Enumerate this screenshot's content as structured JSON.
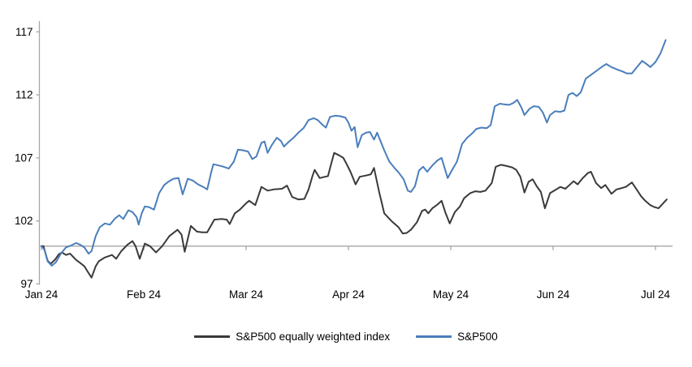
{
  "chart_data": {
    "type": "line",
    "title": "",
    "xlabel": "",
    "ylabel": "",
    "x_axis": {
      "tick_labels": [
        "Jan 24",
        "Feb 24",
        "Mar 24",
        "Apr 24",
        "May 24",
        "Jun 24",
        "Jul 24"
      ],
      "unit": "months since Jan 1 2024",
      "range": [
        0,
        6.17
      ]
    },
    "y_axis": {
      "ticks": [
        97,
        102,
        107,
        112,
        117
      ],
      "range": [
        96.5,
        117.8
      ],
      "baseline_value": 100
    },
    "grid": "none",
    "legend_position": "bottom-center",
    "series": [
      {
        "name": "S&P500 equally weighted index",
        "color": "#3a3a3a",
        "points": [
          [
            0.0,
            100.0
          ],
          [
            0.02,
            100.0
          ],
          [
            0.06,
            98.85
          ],
          [
            0.09,
            98.6
          ],
          [
            0.13,
            98.9
          ],
          [
            0.17,
            99.35
          ],
          [
            0.2,
            99.5
          ],
          [
            0.24,
            99.3
          ],
          [
            0.28,
            99.4
          ],
          [
            0.34,
            98.9
          ],
          [
            0.39,
            98.6
          ],
          [
            0.42,
            98.4
          ],
          [
            0.45,
            98.0
          ],
          [
            0.49,
            97.5
          ],
          [
            0.53,
            98.4
          ],
          [
            0.56,
            98.8
          ],
          [
            0.62,
            99.1
          ],
          [
            0.69,
            99.3
          ],
          [
            0.73,
            99.0
          ],
          [
            0.78,
            99.6
          ],
          [
            0.84,
            100.1
          ],
          [
            0.89,
            100.4
          ],
          [
            0.92,
            100.0
          ],
          [
            0.96,
            99.0
          ],
          [
            1.01,
            100.2
          ],
          [
            1.06,
            100.0
          ],
          [
            1.12,
            99.5
          ],
          [
            1.18,
            100.0
          ],
          [
            1.25,
            100.8
          ],
          [
            1.33,
            101.3
          ],
          [
            1.37,
            100.9
          ],
          [
            1.4,
            99.55
          ],
          [
            1.46,
            101.6
          ],
          [
            1.52,
            101.15
          ],
          [
            1.57,
            101.1
          ],
          [
            1.62,
            101.1
          ],
          [
            1.69,
            102.1
          ],
          [
            1.76,
            102.15
          ],
          [
            1.81,
            102.1
          ],
          [
            1.84,
            101.75
          ],
          [
            1.89,
            102.6
          ],
          [
            1.94,
            102.9
          ],
          [
            2.0,
            103.4
          ],
          [
            2.03,
            103.6
          ],
          [
            2.09,
            103.25
          ],
          [
            2.15,
            104.7
          ],
          [
            2.21,
            104.4
          ],
          [
            2.27,
            104.5
          ],
          [
            2.35,
            104.55
          ],
          [
            2.4,
            104.8
          ],
          [
            2.45,
            103.9
          ],
          [
            2.51,
            103.7
          ],
          [
            2.57,
            103.75
          ],
          [
            2.61,
            104.5
          ],
          [
            2.65,
            105.6
          ],
          [
            2.67,
            106.05
          ],
          [
            2.72,
            105.4
          ],
          [
            2.77,
            105.5
          ],
          [
            2.8,
            105.55
          ],
          [
            2.83,
            106.5
          ],
          [
            2.86,
            107.4
          ],
          [
            2.91,
            107.2
          ],
          [
            2.95,
            107.0
          ],
          [
            2.98,
            106.55
          ],
          [
            3.02,
            105.9
          ],
          [
            3.05,
            105.3
          ],
          [
            3.07,
            104.9
          ],
          [
            3.11,
            105.5
          ],
          [
            3.17,
            105.6
          ],
          [
            3.22,
            105.7
          ],
          [
            3.25,
            106.2
          ],
          [
            3.3,
            104.3
          ],
          [
            3.35,
            102.6
          ],
          [
            3.42,
            102.0
          ],
          [
            3.49,
            101.5
          ],
          [
            3.53,
            101.0
          ],
          [
            3.57,
            101.05
          ],
          [
            3.61,
            101.3
          ],
          [
            3.67,
            101.9
          ],
          [
            3.72,
            102.8
          ],
          [
            3.75,
            102.9
          ],
          [
            3.78,
            102.6
          ],
          [
            3.82,
            103.0
          ],
          [
            3.87,
            103.3
          ],
          [
            3.91,
            103.6
          ],
          [
            3.95,
            102.6
          ],
          [
            3.99,
            101.8
          ],
          [
            4.04,
            102.7
          ],
          [
            4.09,
            103.15
          ],
          [
            4.13,
            103.8
          ],
          [
            4.19,
            104.2
          ],
          [
            4.24,
            104.35
          ],
          [
            4.29,
            104.3
          ],
          [
            4.34,
            104.4
          ],
          [
            4.4,
            105.0
          ],
          [
            4.44,
            106.3
          ],
          [
            4.49,
            106.45
          ],
          [
            4.55,
            106.35
          ],
          [
            4.6,
            106.25
          ],
          [
            4.64,
            106.05
          ],
          [
            4.68,
            105.5
          ],
          [
            4.72,
            104.25
          ],
          [
            4.76,
            105.1
          ],
          [
            4.8,
            105.3
          ],
          [
            4.84,
            104.75
          ],
          [
            4.88,
            104.3
          ],
          [
            4.92,
            103.0
          ],
          [
            4.97,
            104.2
          ],
          [
            5.02,
            104.45
          ],
          [
            5.07,
            104.7
          ],
          [
            5.12,
            104.55
          ],
          [
            5.16,
            104.85
          ],
          [
            5.2,
            105.15
          ],
          [
            5.24,
            104.9
          ],
          [
            5.29,
            105.4
          ],
          [
            5.34,
            105.8
          ],
          [
            5.37,
            105.9
          ],
          [
            5.42,
            105.0
          ],
          [
            5.47,
            104.6
          ],
          [
            5.51,
            104.85
          ],
          [
            5.57,
            104.15
          ],
          [
            5.62,
            104.5
          ],
          [
            5.67,
            104.6
          ],
          [
            5.71,
            104.7
          ],
          [
            5.77,
            105.05
          ],
          [
            5.82,
            104.45
          ],
          [
            5.86,
            103.95
          ],
          [
            5.9,
            103.6
          ],
          [
            5.95,
            103.25
          ],
          [
            5.99,
            103.1
          ],
          [
            6.03,
            103.0
          ],
          [
            6.07,
            103.35
          ],
          [
            6.11,
            103.7
          ]
        ]
      },
      {
        "name": "S&P500",
        "color": "#4a7ebb",
        "points": [
          [
            0.0,
            100.0
          ],
          [
            0.03,
            99.7
          ],
          [
            0.06,
            98.8
          ],
          [
            0.1,
            98.45
          ],
          [
            0.14,
            98.7
          ],
          [
            0.19,
            99.4
          ],
          [
            0.24,
            99.9
          ],
          [
            0.29,
            100.05
          ],
          [
            0.34,
            100.25
          ],
          [
            0.38,
            100.1
          ],
          [
            0.42,
            99.9
          ],
          [
            0.46,
            99.4
          ],
          [
            0.49,
            99.6
          ],
          [
            0.53,
            100.8
          ],
          [
            0.57,
            101.5
          ],
          [
            0.62,
            101.8
          ],
          [
            0.67,
            101.7
          ],
          [
            0.72,
            102.2
          ],
          [
            0.76,
            102.45
          ],
          [
            0.8,
            102.15
          ],
          [
            0.85,
            102.85
          ],
          [
            0.89,
            102.7
          ],
          [
            0.93,
            102.3
          ],
          [
            0.95,
            101.7
          ],
          [
            0.98,
            102.6
          ],
          [
            1.01,
            103.15
          ],
          [
            1.05,
            103.1
          ],
          [
            1.1,
            102.9
          ],
          [
            1.15,
            104.2
          ],
          [
            1.2,
            104.85
          ],
          [
            1.24,
            105.1
          ],
          [
            1.29,
            105.35
          ],
          [
            1.34,
            105.4
          ],
          [
            1.38,
            104.1
          ],
          [
            1.43,
            105.35
          ],
          [
            1.48,
            105.2
          ],
          [
            1.53,
            104.9
          ],
          [
            1.58,
            104.7
          ],
          [
            1.62,
            104.5
          ],
          [
            1.66,
            105.9
          ],
          [
            1.68,
            106.5
          ],
          [
            1.73,
            106.4
          ],
          [
            1.78,
            106.3
          ],
          [
            1.83,
            106.15
          ],
          [
            1.88,
            106.7
          ],
          [
            1.92,
            107.65
          ],
          [
            1.97,
            107.6
          ],
          [
            2.02,
            107.5
          ],
          [
            2.06,
            106.9
          ],
          [
            2.1,
            107.1
          ],
          [
            2.15,
            108.2
          ],
          [
            2.18,
            108.3
          ],
          [
            2.21,
            107.4
          ],
          [
            2.25,
            108.0
          ],
          [
            2.3,
            108.6
          ],
          [
            2.34,
            108.35
          ],
          [
            2.37,
            107.9
          ],
          [
            2.42,
            108.3
          ],
          [
            2.47,
            108.65
          ],
          [
            2.51,
            109.0
          ],
          [
            2.56,
            109.35
          ],
          [
            2.61,
            110.0
          ],
          [
            2.66,
            110.15
          ],
          [
            2.7,
            110.0
          ],
          [
            2.75,
            109.6
          ],
          [
            2.78,
            109.4
          ],
          [
            2.82,
            110.25
          ],
          [
            2.87,
            110.35
          ],
          [
            2.92,
            110.3
          ],
          [
            2.97,
            110.2
          ],
          [
            3.0,
            109.8
          ],
          [
            3.03,
            109.15
          ],
          [
            3.06,
            109.45
          ],
          [
            3.09,
            107.85
          ],
          [
            3.13,
            108.8
          ],
          [
            3.17,
            109.0
          ],
          [
            3.21,
            109.05
          ],
          [
            3.25,
            108.45
          ],
          [
            3.28,
            109.0
          ],
          [
            3.31,
            108.4
          ],
          [
            3.35,
            107.6
          ],
          [
            3.4,
            106.7
          ],
          [
            3.45,
            106.2
          ],
          [
            3.49,
            105.85
          ],
          [
            3.54,
            105.3
          ],
          [
            3.58,
            104.4
          ],
          [
            3.61,
            104.3
          ],
          [
            3.65,
            104.75
          ],
          [
            3.69,
            106.0
          ],
          [
            3.73,
            106.3
          ],
          [
            3.77,
            105.9
          ],
          [
            3.82,
            106.4
          ],
          [
            3.87,
            106.8
          ],
          [
            3.91,
            107.0
          ],
          [
            3.94,
            106.2
          ],
          [
            3.97,
            105.4
          ],
          [
            4.01,
            106.0
          ],
          [
            4.06,
            106.7
          ],
          [
            4.11,
            108.1
          ],
          [
            4.16,
            108.6
          ],
          [
            4.21,
            108.95
          ],
          [
            4.25,
            109.3
          ],
          [
            4.3,
            109.4
          ],
          [
            4.35,
            109.35
          ],
          [
            4.39,
            109.6
          ],
          [
            4.43,
            111.1
          ],
          [
            4.48,
            111.3
          ],
          [
            4.52,
            111.25
          ],
          [
            4.57,
            111.2
          ],
          [
            4.61,
            111.35
          ],
          [
            4.65,
            111.6
          ],
          [
            4.69,
            111.0
          ],
          [
            4.72,
            110.4
          ],
          [
            4.77,
            110.9
          ],
          [
            4.81,
            111.1
          ],
          [
            4.86,
            111.05
          ],
          [
            4.9,
            110.6
          ],
          [
            4.94,
            109.8
          ],
          [
            4.97,
            110.4
          ],
          [
            5.02,
            110.7
          ],
          [
            5.07,
            110.65
          ],
          [
            5.11,
            110.75
          ],
          [
            5.15,
            112.0
          ],
          [
            5.19,
            112.15
          ],
          [
            5.23,
            111.9
          ],
          [
            5.27,
            112.2
          ],
          [
            5.32,
            113.3
          ],
          [
            5.39,
            113.7
          ],
          [
            5.44,
            114.0
          ],
          [
            5.49,
            114.3
          ],
          [
            5.52,
            114.45
          ],
          [
            5.57,
            114.2
          ],
          [
            5.63,
            114.0
          ],
          [
            5.68,
            113.85
          ],
          [
            5.72,
            113.7
          ],
          [
            5.77,
            113.7
          ],
          [
            5.82,
            114.2
          ],
          [
            5.87,
            114.7
          ],
          [
            5.92,
            114.4
          ],
          [
            5.95,
            114.2
          ],
          [
            6.0,
            114.6
          ],
          [
            6.05,
            115.3
          ],
          [
            6.1,
            116.35
          ]
        ]
      }
    ]
  },
  "legend": {
    "items": [
      {
        "label": "S&P500 equally weighted index",
        "color": "#3a3a3a"
      },
      {
        "label": "S&P500",
        "color": "#4a7ebb"
      }
    ]
  },
  "colors": {
    "axis": "#a6a6a6",
    "text": "#000000",
    "background": "#ffffff"
  }
}
